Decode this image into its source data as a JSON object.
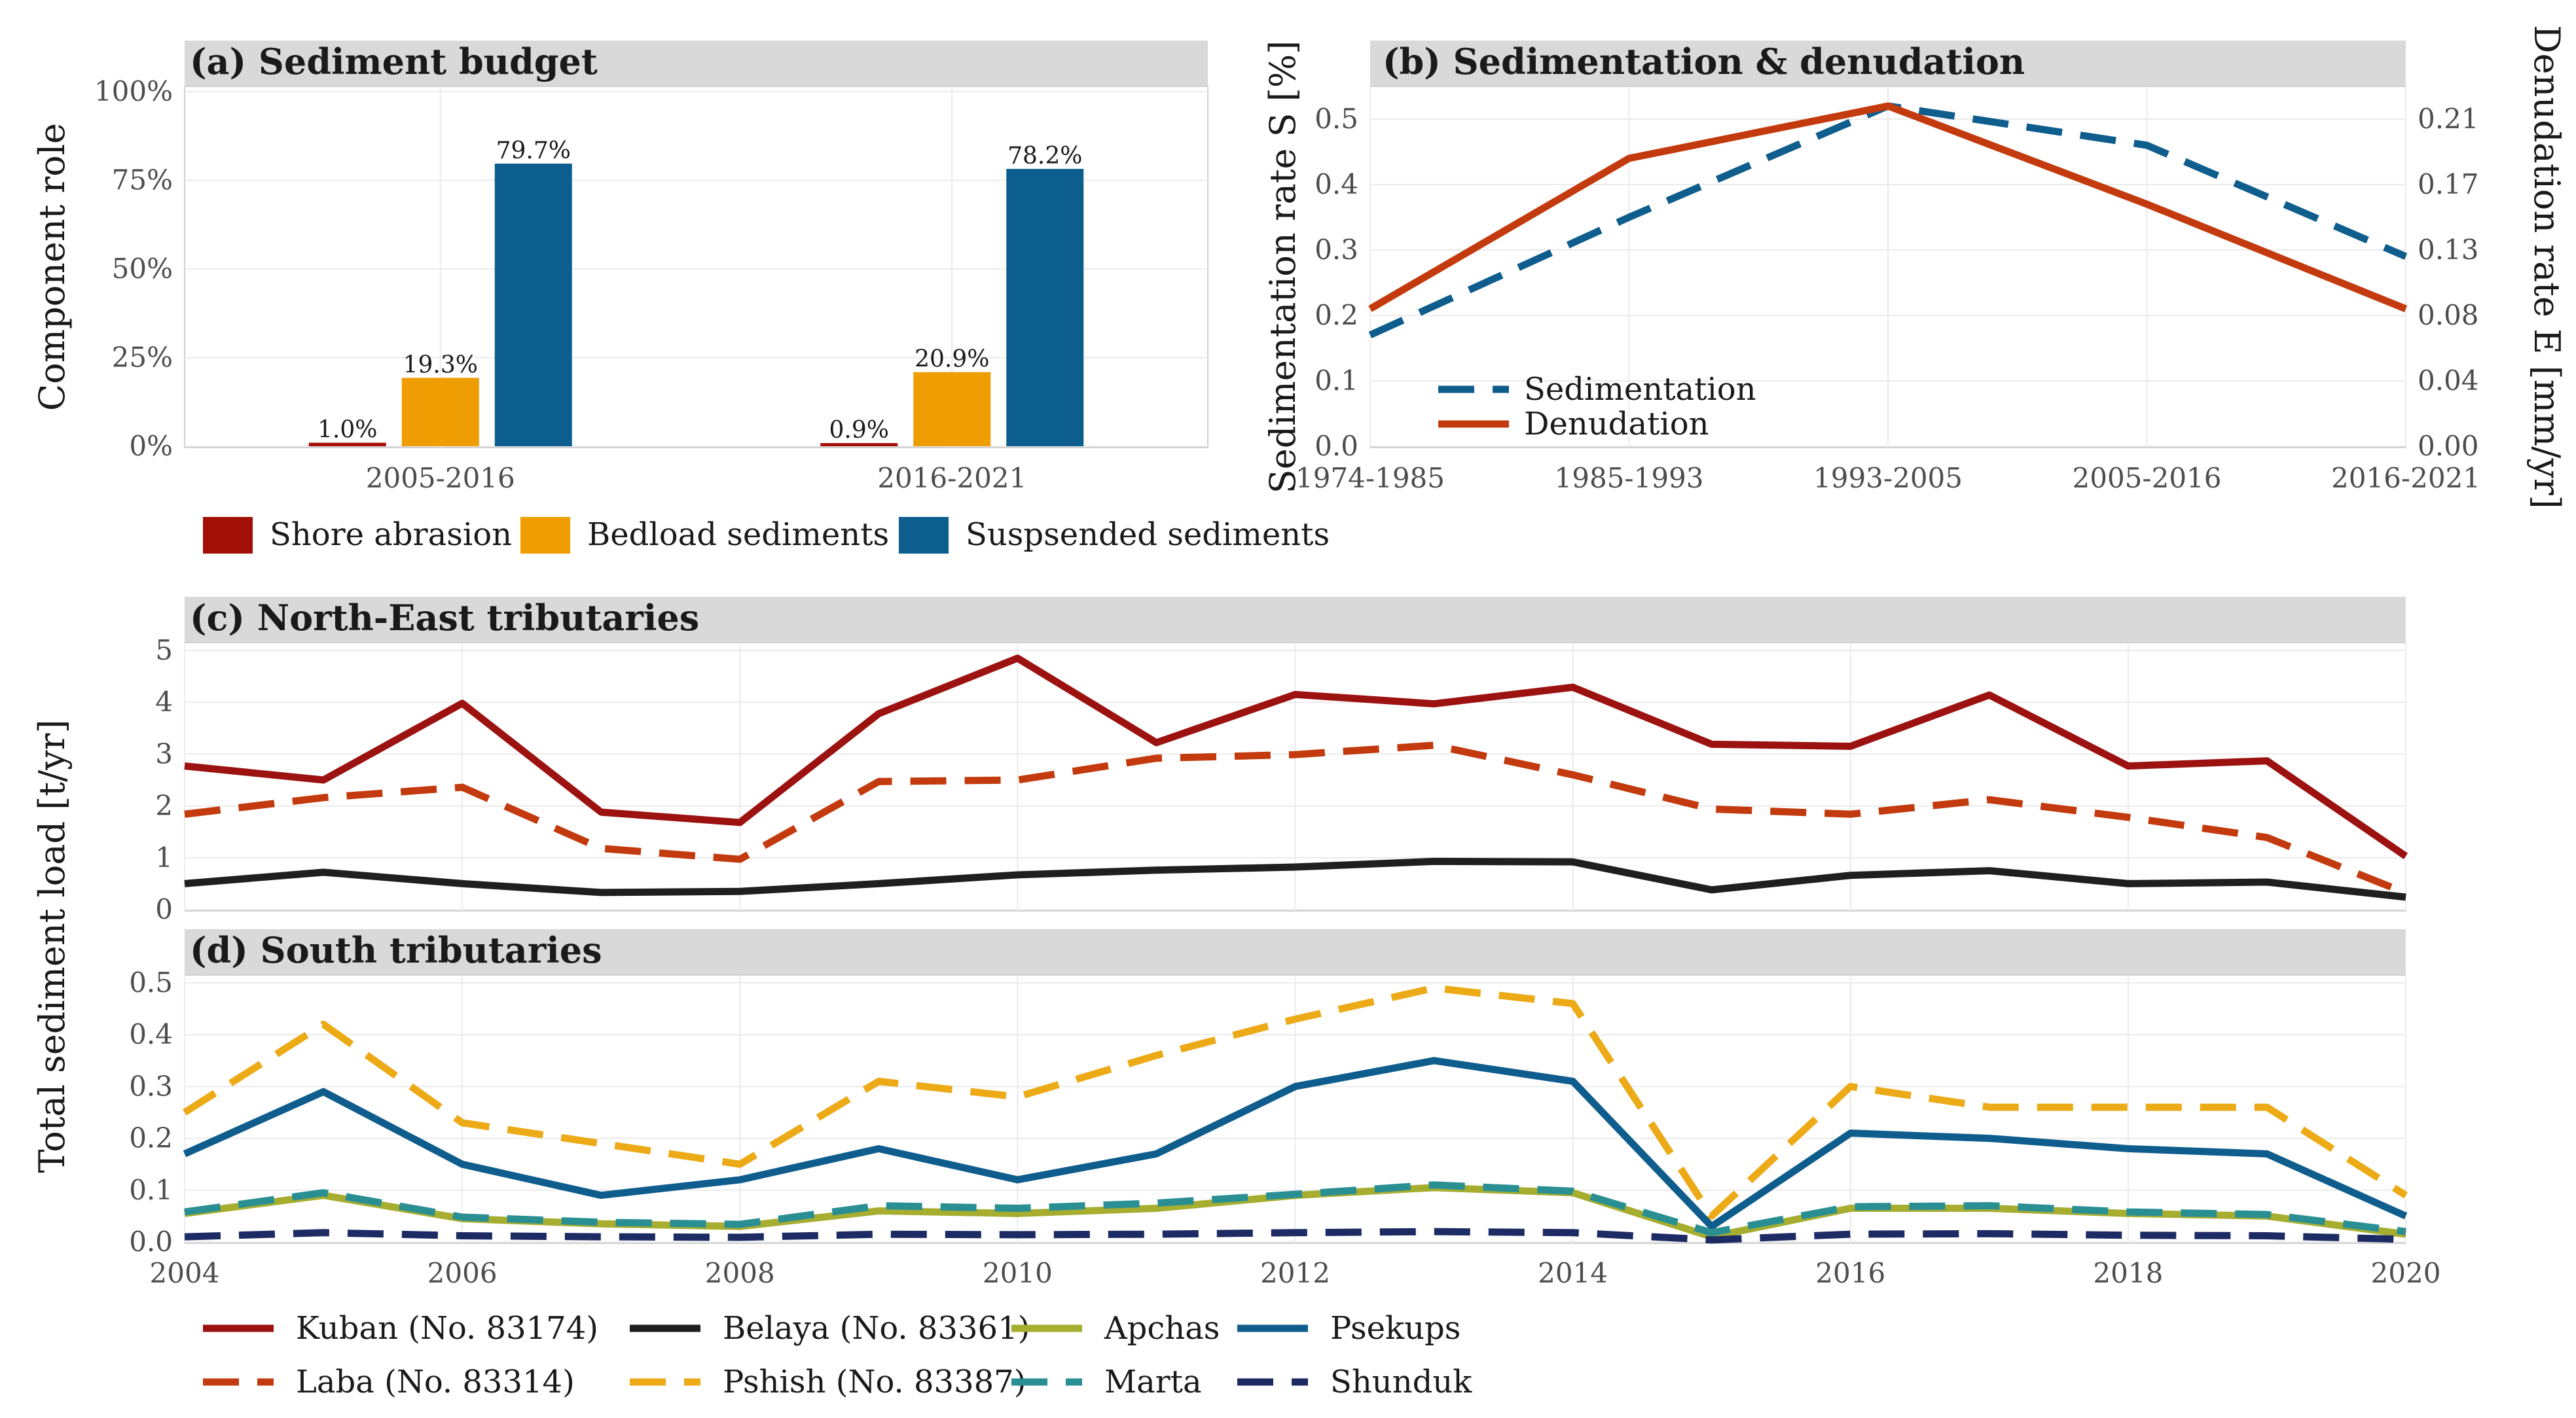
{
  "colors": {
    "strip": "#d9d9d9",
    "grid": "#ebebeb",
    "panel_border": "#d0d0d0",
    "shore": "#a10f07",
    "bedload": "#ee9d02",
    "suspended": "#0b5e8d",
    "sedimentation": "#0e5d8d",
    "denudation": "#c23a0d",
    "kuban": "#9b1210",
    "laba": "#c23a0d",
    "belaya": "#1f1f1f",
    "pshish": "#ecaa17",
    "apchas": "#a6ad2f",
    "marta": "#2a8f93",
    "psekups": "#0e5d8d",
    "shunduk": "#1c2b63"
  },
  "chart_data": [
    {
      "type": "bar",
      "title": "(a) Sediment budget",
      "ylabel": "Component role",
      "categories": [
        "2005-2016",
        "2016-2021"
      ],
      "ylim": [
        0,
        100
      ],
      "yticks": [
        "0%",
        "25%",
        "50%",
        "75%",
        "100%"
      ],
      "ytick_values": [
        0,
        25,
        50,
        75,
        100
      ],
      "series": [
        {
          "name": "Shore abrasion",
          "values": [
            1.0,
            0.9
          ],
          "labels": [
            "1.0%",
            "0.9%"
          ]
        },
        {
          "name": "Bedload sediments",
          "values": [
            19.3,
            20.9
          ],
          "labels": [
            "19.3%",
            "20.9%"
          ]
        },
        {
          "name": "Suspsended sediments",
          "values": [
            79.7,
            78.2
          ],
          "labels": [
            "79.7%",
            "78.2%"
          ]
        }
      ],
      "legend": "bottom"
    },
    {
      "type": "line",
      "title": "(b) Sedimentation & denudation",
      "ylabel": "Sedimentation rate S [%]",
      "ylabel_right": "Denudation rate E [mm/yr]",
      "categories": [
        "1974-1985",
        "1985-1993",
        "1993-2005",
        "2005-2016",
        "2016-2021"
      ],
      "ylim": [
        0,
        0.55
      ],
      "yticks": [
        "0.0",
        "0.1",
        "0.2",
        "0.3",
        "0.4",
        "0.5"
      ],
      "ytick_values": [
        0,
        0.1,
        0.2,
        0.3,
        0.4,
        0.5
      ],
      "yticks_right": [
        "0.00",
        "0.04",
        "0.08",
        "0.13",
        "0.17",
        "0.21"
      ],
      "series": [
        {
          "name": "Sedimentation",
          "values": [
            0.17,
            0.35,
            0.52,
            0.46,
            0.29
          ],
          "dash": true
        },
        {
          "name": "Denudation",
          "values": [
            0.21,
            0.44,
            0.52,
            0.37,
            0.21
          ],
          "dash": false
        }
      ],
      "legend": "bottom-left"
    },
    {
      "type": "line",
      "title": "(c) North-East tributaries",
      "x": [
        2004,
        2005,
        2006,
        2007,
        2008,
        2009,
        2010,
        2011,
        2012,
        2013,
        2014,
        2015,
        2016,
        2017,
        2018,
        2019,
        2020
      ],
      "ylim": [
        0,
        5
      ],
      "yticks": [
        "0",
        "1",
        "2",
        "3",
        "4",
        "5"
      ],
      "ytick_values": [
        0,
        1,
        2,
        3,
        4,
        5
      ],
      "series": [
        {
          "name": "Kuban (No. 83174)",
          "key": "kuban",
          "dash": false,
          "values": [
            2.77,
            2.5,
            3.98,
            1.88,
            1.68,
            3.78,
            4.85,
            3.22,
            4.15,
            3.97,
            4.29,
            3.19,
            3.15,
            4.14,
            2.77,
            2.87,
            1.03
          ]
        },
        {
          "name": "Laba (No. 83314)",
          "key": "laba",
          "dash": true,
          "values": [
            1.84,
            2.16,
            2.36,
            1.18,
            0.97,
            2.47,
            2.5,
            2.92,
            2.99,
            3.17,
            2.6,
            1.94,
            1.84,
            2.12,
            1.78,
            1.39,
            0.32
          ]
        },
        {
          "name": "Belaya (No. 83361)",
          "key": "belaya",
          "dash": false,
          "values": [
            0.5,
            0.72,
            0.5,
            0.33,
            0.35,
            0.5,
            0.67,
            0.76,
            0.82,
            0.93,
            0.92,
            0.38,
            0.66,
            0.75,
            0.5,
            0.53,
            0.24
          ]
        }
      ]
    },
    {
      "type": "line",
      "title": "(d) South tributaries",
      "x": [
        2004,
        2005,
        2006,
        2007,
        2008,
        2009,
        2010,
        2011,
        2012,
        2013,
        2014,
        2015,
        2016,
        2017,
        2018,
        2019,
        2020
      ],
      "xticks": [
        "2004",
        "2006",
        "2008",
        "2010",
        "2012",
        "2014",
        "2016",
        "2018",
        "2020"
      ],
      "xtick_values": [
        2004,
        2006,
        2008,
        2010,
        2012,
        2014,
        2016,
        2018,
        2020
      ],
      "ylim": [
        0,
        0.5
      ],
      "yticks": [
        "0.0",
        "0.1",
        "0.2",
        "0.3",
        "0.4",
        "0.5"
      ],
      "ytick_values": [
        0,
        0.1,
        0.2,
        0.3,
        0.4,
        0.5
      ],
      "series": [
        {
          "name": "Pshish (No. 83387)",
          "key": "pshish",
          "dash": true,
          "values": [
            0.25,
            0.42,
            0.23,
            0.19,
            0.15,
            0.31,
            0.28,
            0.36,
            0.43,
            0.49,
            0.46,
            0.05,
            0.3,
            0.26,
            0.26,
            0.26,
            0.09
          ]
        },
        {
          "name": "Psekups",
          "key": "psekups",
          "dash": false,
          "values": [
            0.17,
            0.29,
            0.15,
            0.09,
            0.12,
            0.18,
            0.12,
            0.17,
            0.3,
            0.35,
            0.31,
            0.03,
            0.21,
            0.2,
            0.18,
            0.17,
            0.05
          ]
        },
        {
          "name": "Apchas",
          "key": "apchas",
          "dash": false,
          "values": [
            0.055,
            0.09,
            0.045,
            0.035,
            0.03,
            0.06,
            0.055,
            0.065,
            0.09,
            0.105,
            0.095,
            0.01,
            0.065,
            0.065,
            0.055,
            0.05,
            0.015
          ]
        },
        {
          "name": "Marta",
          "key": "marta",
          "dash": true,
          "values": [
            0.058,
            0.095,
            0.048,
            0.038,
            0.034,
            0.07,
            0.065,
            0.075,
            0.092,
            0.11,
            0.098,
            0.018,
            0.068,
            0.07,
            0.058,
            0.053,
            0.02
          ]
        },
        {
          "name": "Shunduk",
          "key": "shunduk",
          "dash": true,
          "values": [
            0.01,
            0.018,
            0.012,
            0.01,
            0.009,
            0.015,
            0.014,
            0.015,
            0.018,
            0.02,
            0.018,
            0.004,
            0.015,
            0.016,
            0.013,
            0.012,
            0.005
          ]
        }
      ],
      "shared_ylabel": "Total sediment load [t/yr]",
      "legend": "bottom"
    }
  ],
  "legend_cd": [
    {
      "name": "Kuban (No. 83174)",
      "key": "kuban",
      "dash": false
    },
    {
      "name": "Laba (No. 83314)",
      "key": "laba",
      "dash": true
    },
    {
      "name": "Belaya (No. 83361)",
      "key": "belaya",
      "dash": false
    },
    {
      "name": "Pshish (No. 83387)",
      "key": "pshish",
      "dash": true
    },
    {
      "name": "Apchas",
      "key": "apchas",
      "dash": false
    },
    {
      "name": "Marta",
      "key": "marta",
      "dash": true
    },
    {
      "name": "Psekups",
      "key": "psekups",
      "dash": false
    },
    {
      "name": "Shunduk",
      "key": "shunduk",
      "dash": true
    }
  ]
}
